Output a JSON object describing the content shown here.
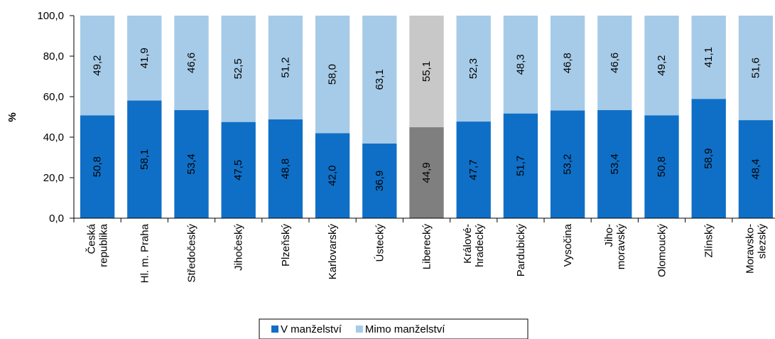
{
  "chart_data": {
    "type": "stacked_bar",
    "y_label": "%",
    "categories": [
      "Česká\nrepublika",
      "Hl. m. Praha",
      "Středočeský",
      "Jihočeský",
      "Plzeňský",
      "Karlovarský",
      "Ústecký",
      "Liberecký",
      "Králové-\nhradecký",
      "Pardubický",
      "Vysočina",
      "Jiho-\nmoravský",
      "Olomoucký",
      "Zlínský",
      "Moravsko-\nslezský"
    ],
    "series": [
      {
        "name": "V manželství",
        "color": "#0f6fc6",
        "colors": [
          "#0f6fc6",
          "#0f6fc6",
          "#0f6fc6",
          "#0f6fc6",
          "#0f6fc6",
          "#0f6fc6",
          "#0f6fc6",
          "#7f7f7f",
          "#0f6fc6",
          "#0f6fc6",
          "#0f6fc6",
          "#0f6fc6",
          "#0f6fc6",
          "#0f6fc6",
          "#0f6fc6"
        ],
        "values": [
          50.8,
          58.1,
          53.4,
          47.5,
          48.8,
          42.0,
          36.9,
          44.9,
          47.7,
          51.7,
          53.2,
          53.4,
          50.8,
          58.9,
          48.4
        ],
        "value_labels": [
          "50,8",
          "58,1",
          "53,4",
          "47,5",
          "48,8",
          "42,0",
          "36,9",
          "44,9",
          "47,7",
          "51,7",
          "53,2",
          "53,4",
          "50,8",
          "58,9",
          "48,4"
        ]
      },
      {
        "name": "Mimo manželství",
        "color": "#a6cbe8",
        "colors": [
          "#a6cbe8",
          "#a6cbe8",
          "#a6cbe8",
          "#a6cbe8",
          "#a6cbe8",
          "#a6cbe8",
          "#a6cbe8",
          "#c8c8c8",
          "#a6cbe8",
          "#a6cbe8",
          "#a6cbe8",
          "#a6cbe8",
          "#a6cbe8",
          "#a6cbe8",
          "#a6cbe8"
        ],
        "values": [
          49.2,
          41.9,
          46.6,
          52.5,
          51.2,
          58.0,
          63.1,
          55.1,
          52.3,
          48.3,
          46.8,
          46.6,
          49.2,
          41.1,
          51.6
        ],
        "value_labels": [
          "49,2",
          "41,9",
          "46,6",
          "52,5",
          "51,2",
          "58,0",
          "63,1",
          "55,1",
          "52,3",
          "48,3",
          "46,8",
          "46,6",
          "49,2",
          "41,1",
          "51,6"
        ]
      }
    ],
    "ylim": [
      0,
      100
    ],
    "yticks": [
      {
        "value": 0,
        "label": "0,0"
      },
      {
        "value": 20,
        "label": "20,0"
      },
      {
        "value": 40,
        "label": "40,0"
      },
      {
        "value": 60,
        "label": "60,0"
      },
      {
        "value": 80,
        "label": "80,0"
      },
      {
        "value": 100,
        "label": "100,0"
      }
    ],
    "legend": "bottom"
  }
}
